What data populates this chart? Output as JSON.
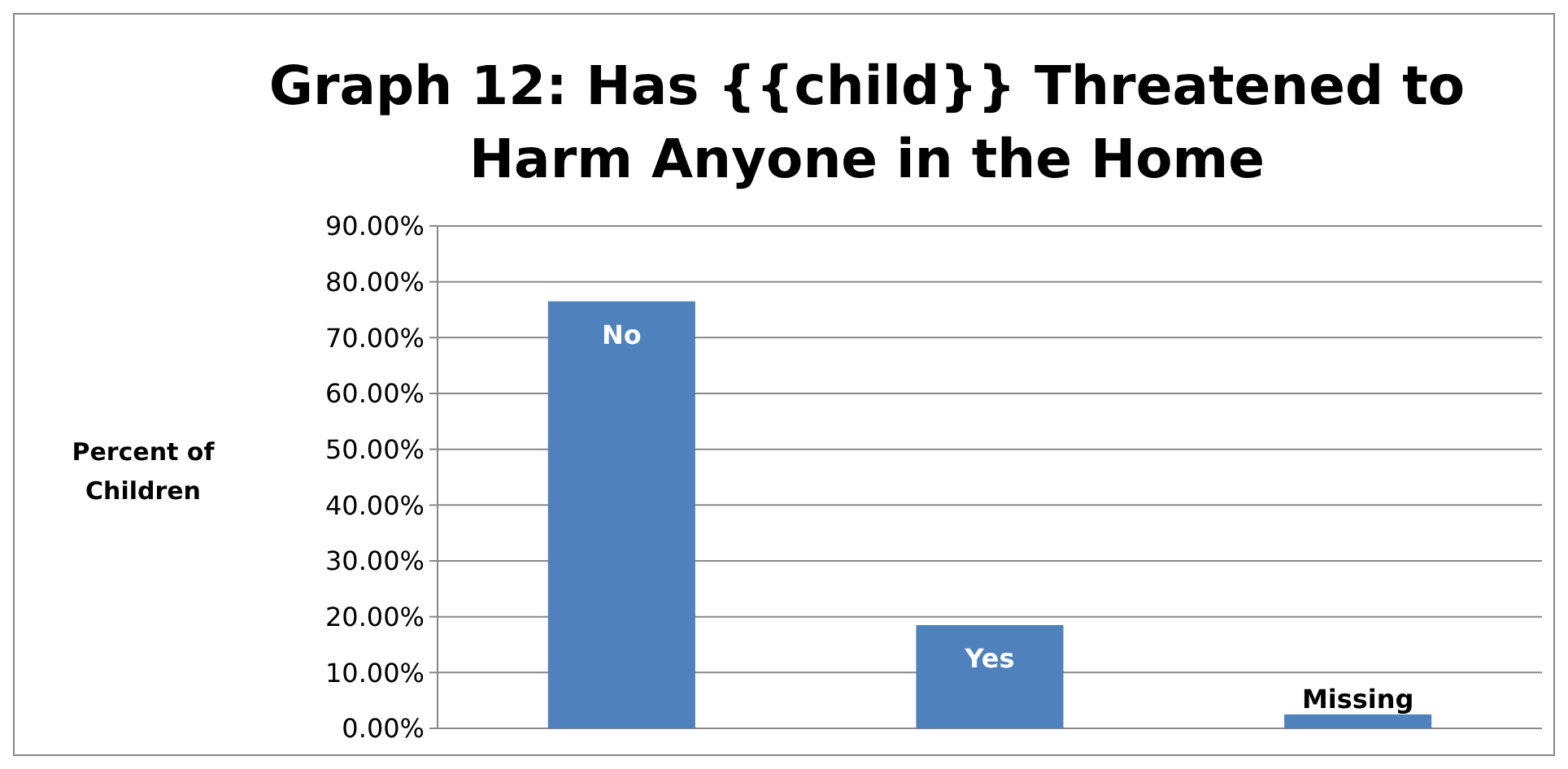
{
  "chart_data": {
    "type": "bar",
    "title": "Graph 12: Has {{child}} Threatened to Harm Anyone in the Home",
    "ylabel": "Percent of Children",
    "categories": [
      "No",
      "Yes",
      "Missing"
    ],
    "values": [
      76.5,
      18.5,
      2.5
    ],
    "color": "#4f81bd",
    "ylim": [
      0,
      90
    ],
    "yticks": [
      {
        "value": 0,
        "label": "0.00%"
      },
      {
        "value": 10,
        "label": "10.00%"
      },
      {
        "value": 20,
        "label": "20.00%"
      },
      {
        "value": 30,
        "label": "30.00%"
      },
      {
        "value": 40,
        "label": "40.00%"
      },
      {
        "value": 50,
        "label": "50.00%"
      },
      {
        "value": 60,
        "label": "60.00%"
      },
      {
        "value": 70,
        "label": "70.00%"
      },
      {
        "value": 80,
        "label": "80.00%"
      },
      {
        "value": 90,
        "label": "90.00%"
      }
    ],
    "grid": "y"
  }
}
